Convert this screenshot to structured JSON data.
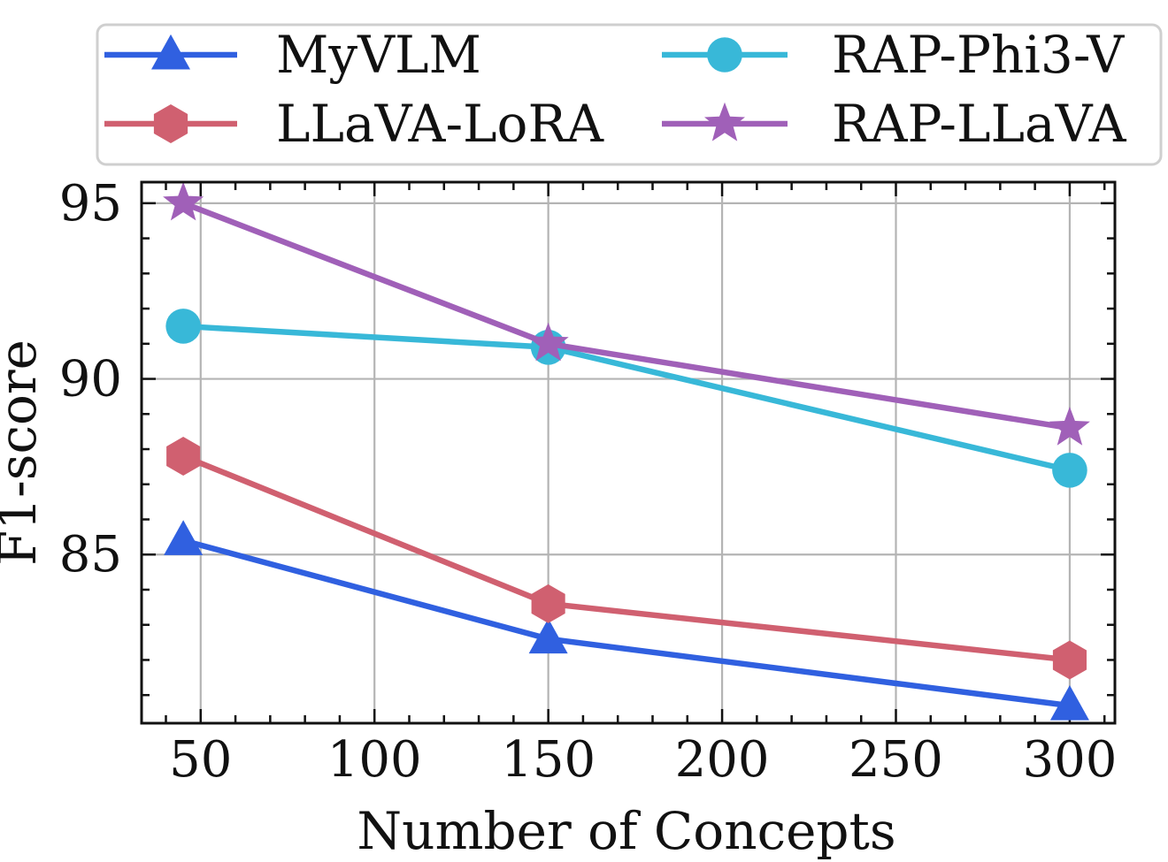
{
  "chart_data": {
    "type": "line",
    "xlabel": "Number of Concepts",
    "ylabel": "F1-score",
    "x": [
      45,
      150,
      300
    ],
    "xlim": [
      33,
      313
    ],
    "ylim": [
      80.2,
      95.6
    ],
    "xticks": [
      50,
      100,
      150,
      200,
      250,
      300
    ],
    "xtick_labels": [
      "50",
      "100",
      "150",
      "200",
      "250",
      "300"
    ],
    "yticks": [
      85,
      90,
      95
    ],
    "ytick_labels": [
      "85",
      "90",
      "95"
    ],
    "grid": true,
    "legend_position": "top",
    "series": [
      {
        "name": "MyVLM",
        "values": [
          85.4,
          82.6,
          80.7
        ],
        "color": "#3060E0",
        "marker": "triangle-up"
      },
      {
        "name": "LLaVA-LoRA",
        "values": [
          87.8,
          83.6,
          82.0
        ],
        "color": "#D06070",
        "marker": "hexagon"
      },
      {
        "name": "RAP-Phi3-V",
        "values": [
          91.5,
          90.9,
          87.4
        ],
        "color": "#38B8D8",
        "marker": "circle"
      },
      {
        "name": "RAP-LLaVA",
        "values": [
          95.0,
          91.0,
          88.6
        ],
        "color": "#A060B8",
        "marker": "star"
      }
    ],
    "legend_order": [
      0,
      2,
      1,
      3
    ]
  }
}
